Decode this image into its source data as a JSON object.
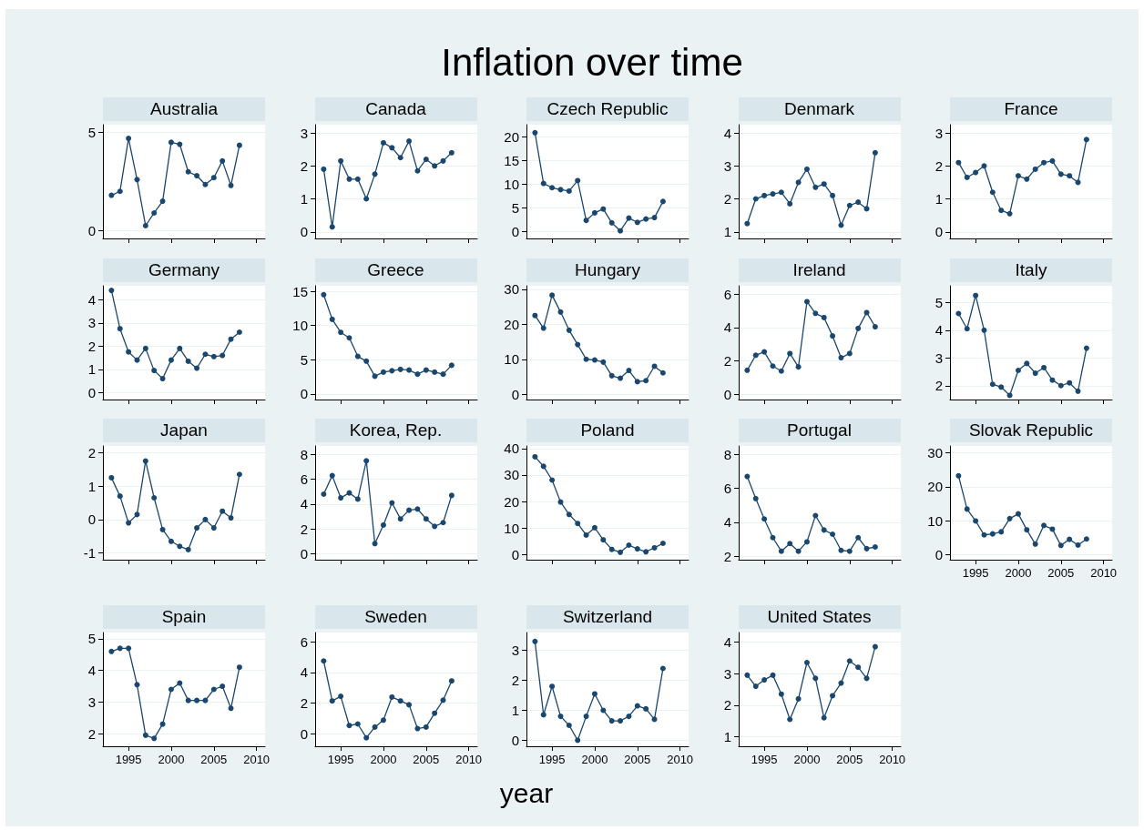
{
  "chart_data": [
    {
      "type": "line",
      "title": "Australia",
      "x": [
        1993,
        1994,
        1995,
        1996,
        1997,
        1998,
        1999,
        2000,
        2001,
        2002,
        2003,
        2004,
        2005,
        2006,
        2007,
        2008
      ],
      "values": [
        1.8,
        2.0,
        4.7,
        2.6,
        0.25,
        0.9,
        1.5,
        4.5,
        4.4,
        3.0,
        2.8,
        2.35,
        2.7,
        3.55,
        2.3,
        4.35
      ],
      "color": "#1a476f",
      "xlim": [
        1992,
        2011
      ],
      "xticks": [
        1995,
        2000,
        2005,
        2010
      ],
      "ylim": [
        -0.4,
        5.4
      ],
      "yticks": [
        0,
        5
      ],
      "grid": "y",
      "marker": "circle",
      "tick_labels": "y"
    },
    {
      "type": "line",
      "title": "Canada",
      "x": [
        1993,
        1994,
        1995,
        1996,
        1997,
        1998,
        1999,
        2000,
        2001,
        2002,
        2003,
        2004,
        2005,
        2006,
        2007,
        2008
      ],
      "values": [
        1.9,
        0.15,
        2.15,
        1.6,
        1.6,
        1.0,
        1.75,
        2.7,
        2.55,
        2.25,
        2.75,
        1.85,
        2.2,
        2.0,
        2.15,
        2.4
      ],
      "color": "#1a476f",
      "xlim": [
        1992,
        2011
      ],
      "xticks": [
        1995,
        2000,
        2005,
        2010
      ],
      "ylim": [
        -0.2,
        3.25
      ],
      "yticks": [
        0,
        1,
        2,
        3
      ],
      "grid": "y",
      "marker": "circle",
      "tick_labels": "y"
    },
    {
      "type": "line",
      "title": "Czech Republic",
      "annotations": [
        "Inflation over time"
      ],
      "x": [
        1993,
        1994,
        1995,
        1996,
        1997,
        1998,
        1999,
        2000,
        2001,
        2002,
        2003,
        2004,
        2005,
        2006,
        2007,
        2008
      ],
      "values": [
        20.8,
        10.1,
        9.2,
        8.8,
        8.5,
        10.7,
        2.3,
        3.9,
        4.7,
        1.8,
        0.1,
        2.8,
        1.9,
        2.6,
        2.9,
        6.3
      ],
      "color": "#1a476f",
      "xlim": [
        1992,
        2011
      ],
      "xticks": [
        1995,
        2000,
        2005,
        2010
      ],
      "ylim": [
        -1.5,
        22.5
      ],
      "yticks": [
        0,
        5,
        10,
        15,
        20
      ],
      "grid": "y",
      "marker": "circle",
      "tick_labels": "y"
    },
    {
      "type": "line",
      "title": "Denmark",
      "x": [
        1993,
        1994,
        1995,
        1996,
        1997,
        1998,
        1999,
        2000,
        2001,
        2002,
        2003,
        2004,
        2005,
        2006,
        2007,
        2008
      ],
      "values": [
        1.25,
        2.0,
        2.1,
        2.15,
        2.2,
        1.85,
        2.5,
        2.9,
        2.35,
        2.45,
        2.1,
        1.2,
        1.8,
        1.9,
        1.7,
        3.4
      ],
      "color": "#1a476f",
      "xlim": [
        1992,
        2011
      ],
      "xticks": [
        1995,
        2000,
        2005,
        2010
      ],
      "ylim": [
        0.8,
        4.25
      ],
      "yticks": [
        1,
        2,
        3,
        4
      ],
      "grid": "y",
      "marker": "circle",
      "tick_labels": "y"
    },
    {
      "type": "line",
      "title": "France",
      "x": [
        1993,
        1994,
        1995,
        1996,
        1997,
        1998,
        1999,
        2000,
        2001,
        2002,
        2003,
        2004,
        2005,
        2006,
        2007,
        2008
      ],
      "values": [
        2.1,
        1.65,
        1.8,
        2.0,
        1.2,
        0.65,
        0.55,
        1.7,
        1.6,
        1.9,
        2.1,
        2.15,
        1.75,
        1.7,
        1.5,
        2.8
      ],
      "color": "#1a476f",
      "xlim": [
        1992,
        2011
      ],
      "xticks": [
        1995,
        2000,
        2005,
        2010
      ],
      "ylim": [
        -0.2,
        3.25
      ],
      "yticks": [
        0,
        1,
        2,
        3
      ],
      "grid": "y",
      "marker": "circle",
      "tick_labels": "y"
    },
    {
      "type": "line",
      "title": "Germany",
      "x": [
        1993,
        1994,
        1995,
        1996,
        1997,
        1998,
        1999,
        2000,
        2001,
        2002,
        2003,
        2004,
        2005,
        2006,
        2007,
        2008
      ],
      "values": [
        4.4,
        2.75,
        1.75,
        1.4,
        1.9,
        0.95,
        0.6,
        1.4,
        1.9,
        1.35,
        1.05,
        1.65,
        1.55,
        1.6,
        2.3,
        2.6
      ],
      "color": "#1a476f",
      "xlim": [
        1992,
        2011
      ],
      "xticks": [
        1995,
        2000,
        2005,
        2010
      ],
      "ylim": [
        -0.3,
        4.6
      ],
      "yticks": [
        0,
        1,
        2,
        3,
        4
      ],
      "grid": "y",
      "marker": "circle",
      "tick_labels": "y"
    },
    {
      "type": "line",
      "title": "Greece",
      "x": [
        1993,
        1994,
        1995,
        1996,
        1997,
        1998,
        1999,
        2000,
        2001,
        2002,
        2003,
        2004,
        2005,
        2006,
        2007,
        2008
      ],
      "values": [
        14.5,
        10.9,
        9.0,
        8.2,
        5.5,
        4.8,
        2.6,
        3.2,
        3.4,
        3.6,
        3.5,
        2.9,
        3.5,
        3.2,
        2.9,
        4.2
      ],
      "color": "#1a476f",
      "xlim": [
        1992,
        2011
      ],
      "xticks": [
        1995,
        2000,
        2005,
        2010
      ],
      "ylim": [
        -0.8,
        15.8
      ],
      "yticks": [
        0,
        5,
        10,
        15
      ],
      "grid": "y",
      "marker": "circle",
      "tick_labels": "y"
    },
    {
      "type": "line",
      "title": "Hungary",
      "x": [
        1993,
        1994,
        1995,
        1996,
        1997,
        1998,
        1999,
        2000,
        2001,
        2002,
        2003,
        2004,
        2005,
        2006,
        2007,
        2008
      ],
      "values": [
        22.5,
        18.9,
        28.3,
        23.5,
        18.3,
        14.2,
        10.0,
        9.8,
        9.2,
        5.3,
        4.6,
        6.8,
        3.6,
        3.9,
        8.0,
        6.1
      ],
      "color": "#1a476f",
      "xlim": [
        1992,
        2011
      ],
      "xticks": [
        1995,
        2000,
        2005,
        2010
      ],
      "ylim": [
        -1.5,
        31
      ],
      "yticks": [
        0,
        10,
        20,
        30
      ],
      "grid": "y",
      "marker": "circle",
      "tick_labels": "y"
    },
    {
      "type": "line",
      "title": "Ireland",
      "x": [
        1993,
        1994,
        1995,
        1996,
        1997,
        1998,
        1999,
        2000,
        2001,
        2002,
        2003,
        2004,
        2005,
        2006,
        2007,
        2008
      ],
      "values": [
        1.45,
        2.35,
        2.55,
        1.7,
        1.4,
        2.45,
        1.65,
        5.55,
        4.85,
        4.6,
        3.5,
        2.2,
        2.45,
        3.95,
        4.9,
        4.05
      ],
      "color": "#1a476f",
      "xlim": [
        1992,
        2011
      ],
      "xticks": [
        1995,
        2000,
        2005,
        2010
      ],
      "ylim": [
        -0.3,
        6.5
      ],
      "yticks": [
        0,
        2,
        4,
        6
      ],
      "grid": "y",
      "marker": "circle",
      "tick_labels": "y"
    },
    {
      "type": "line",
      "title": "Italy",
      "x": [
        1993,
        1994,
        1995,
        1996,
        1997,
        1998,
        1999,
        2000,
        2001,
        2002,
        2003,
        2004,
        2005,
        2006,
        2007,
        2008
      ],
      "values": [
        4.6,
        4.05,
        5.25,
        4.0,
        2.05,
        1.95,
        1.65,
        2.55,
        2.8,
        2.45,
        2.65,
        2.2,
        2.0,
        2.1,
        1.8,
        3.35
      ],
      "color": "#1a476f",
      "xlim": [
        1992,
        2011
      ],
      "xticks": [
        1995,
        2000,
        2005,
        2010
      ],
      "ylim": [
        1.5,
        5.6
      ],
      "yticks": [
        2,
        3,
        4,
        5
      ],
      "grid": "y",
      "marker": "circle",
      "tick_labels": "y"
    },
    {
      "type": "line",
      "title": "Japan",
      "x": [
        1993,
        1994,
        1995,
        1996,
        1997,
        1998,
        1999,
        2000,
        2001,
        2002,
        2003,
        2004,
        2005,
        2006,
        2007,
        2008
      ],
      "values": [
        1.25,
        0.7,
        -0.1,
        0.15,
        1.75,
        0.65,
        -0.3,
        -0.65,
        -0.8,
        -0.9,
        -0.25,
        0.0,
        -0.25,
        0.25,
        0.05,
        1.35
      ],
      "color": "#1a476f",
      "xlim": [
        1992,
        2011
      ],
      "xticks": [
        1995,
        2000,
        2005,
        2010
      ],
      "ylim": [
        -1.2,
        2.2
      ],
      "yticks": [
        -1,
        0,
        1,
        2
      ],
      "grid": "y",
      "marker": "circle",
      "tick_labels": "y"
    },
    {
      "type": "line",
      "title": "Korea, Rep.",
      "x": [
        1993,
        1994,
        1995,
        1996,
        1997,
        1998,
        1999,
        2000,
        2001,
        2002,
        2003,
        2004,
        2005,
        2006,
        2007,
        2008
      ],
      "values": [
        4.8,
        6.3,
        4.5,
        4.9,
        4.4,
        7.5,
        0.8,
        2.3,
        4.1,
        2.8,
        3.5,
        3.6,
        2.8,
        2.2,
        2.5,
        4.7
      ],
      "color": "#1a476f",
      "xlim": [
        1992,
        2011
      ],
      "xticks": [
        1995,
        2000,
        2005,
        2010
      ],
      "ylim": [
        -0.5,
        8.7
      ],
      "yticks": [
        0,
        2,
        4,
        6,
        8
      ],
      "grid": "y",
      "marker": "circle",
      "tick_labels": "y"
    },
    {
      "type": "line",
      "title": "Poland",
      "x": [
        1993,
        1994,
        1995,
        1996,
        1997,
        1998,
        1999,
        2000,
        2001,
        2002,
        2003,
        2004,
        2005,
        2006,
        2007,
        2008
      ],
      "values": [
        36.9,
        33.3,
        28.1,
        19.8,
        15.1,
        11.7,
        7.3,
        10.1,
        5.5,
        1.9,
        0.8,
        3.5,
        2.1,
        1.0,
        2.5,
        4.2
      ],
      "color": "#1a476f",
      "xlim": [
        1992,
        2011
      ],
      "xticks": [
        1995,
        2000,
        2005,
        2010
      ],
      "ylim": [
        -2,
        41
      ],
      "yticks": [
        0,
        10,
        20,
        30,
        40
      ],
      "grid": "y",
      "marker": "circle",
      "tick_labels": "y"
    },
    {
      "type": "line",
      "title": "Portugal",
      "x": [
        1993,
        1994,
        1995,
        1996,
        1997,
        1998,
        1999,
        2000,
        2001,
        2002,
        2003,
        2004,
        2005,
        2006,
        2007,
        2008
      ],
      "values": [
        6.7,
        5.4,
        4.2,
        3.1,
        2.3,
        2.75,
        2.3,
        2.85,
        4.4,
        3.55,
        3.3,
        2.35,
        2.3,
        3.1,
        2.45,
        2.55
      ],
      "color": "#1a476f",
      "xlim": [
        1992,
        2011
      ],
      "xticks": [
        1995,
        2000,
        2005,
        2010
      ],
      "ylim": [
        1.8,
        8.5
      ],
      "yticks": [
        2,
        4,
        6,
        8
      ],
      "grid": "y",
      "marker": "circle",
      "tick_labels": "y"
    },
    {
      "type": "line",
      "title": "Slovak Republic",
      "x": [
        1993,
        1994,
        1995,
        1996,
        1997,
        1998,
        1999,
        2000,
        2001,
        2002,
        2003,
        2004,
        2005,
        2006,
        2007,
        2008
      ],
      "values": [
        23.2,
        13.4,
        9.9,
        5.8,
        6.1,
        6.7,
        10.6,
        12.0,
        7.3,
        3.1,
        8.6,
        7.5,
        2.7,
        4.5,
        2.8,
        4.6
      ],
      "color": "#1a476f",
      "xlim": [
        1992,
        2011
      ],
      "xticks": [
        1995,
        2000,
        2005,
        2010
      ],
      "ylim": [
        -1.5,
        32
      ],
      "yticks": [
        0,
        10,
        20,
        30
      ],
      "grid": "y",
      "marker": "circle"
    },
    {
      "type": "line",
      "title": "Spain",
      "x": [
        1993,
        1994,
        1995,
        1996,
        1997,
        1998,
        1999,
        2000,
        2001,
        2002,
        2003,
        2004,
        2005,
        2006,
        2007,
        2008
      ],
      "values": [
        4.6,
        4.7,
        4.7,
        3.55,
        1.95,
        1.85,
        2.3,
        3.4,
        3.6,
        3.05,
        3.05,
        3.05,
        3.4,
        3.5,
        2.8,
        4.1
      ],
      "color": "#1a476f",
      "xlim": [
        1992,
        2011
      ],
      "xticks": [
        1995,
        2000,
        2005,
        2010
      ],
      "ylim": [
        1.6,
        5.2
      ],
      "yticks": [
        2,
        3,
        4,
        5
      ],
      "grid": "y",
      "marker": "circle"
    },
    {
      "type": "line",
      "title": "Sweden",
      "x": [
        1993,
        1994,
        1995,
        1996,
        1997,
        1998,
        1999,
        2000,
        2001,
        2002,
        2003,
        2004,
        2005,
        2006,
        2007,
        2008
      ],
      "values": [
        4.75,
        2.15,
        2.45,
        0.55,
        0.65,
        -0.25,
        0.45,
        0.9,
        2.4,
        2.15,
        1.9,
        0.35,
        0.45,
        1.35,
        2.2,
        3.45
      ],
      "color": "#1a476f",
      "xlim": [
        1992,
        2011
      ],
      "xticks": [
        1995,
        2000,
        2005,
        2010
      ],
      "ylim": [
        -0.8,
        6.6
      ],
      "yticks": [
        0,
        2,
        4,
        6
      ],
      "grid": "y",
      "marker": "circle"
    },
    {
      "type": "line",
      "title": "Switzerland",
      "xlabel": "year",
      "x": [
        1993,
        1994,
        1995,
        1996,
        1997,
        1998,
        1999,
        2000,
        2001,
        2002,
        2003,
        2004,
        2005,
        2006,
        2007,
        2008
      ],
      "values": [
        3.3,
        0.85,
        1.8,
        0.8,
        0.5,
        0.0,
        0.8,
        1.55,
        1.0,
        0.65,
        0.65,
        0.8,
        1.15,
        1.05,
        0.7,
        2.4
      ],
      "color": "#1a476f",
      "xlim": [
        1992,
        2011
      ],
      "xticks": [
        1995,
        2000,
        2005,
        2010
      ],
      "ylim": [
        -0.2,
        3.6
      ],
      "yticks": [
        0,
        1,
        2,
        3
      ],
      "grid": "y",
      "marker": "circle"
    },
    {
      "type": "line",
      "title": "United States",
      "x": [
        1993,
        1994,
        1995,
        1996,
        1997,
        1998,
        1999,
        2000,
        2001,
        2002,
        2003,
        2004,
        2005,
        2006,
        2007,
        2008
      ],
      "values": [
        2.95,
        2.6,
        2.8,
        2.95,
        2.35,
        1.55,
        2.2,
        3.35,
        2.85,
        1.6,
        2.3,
        2.7,
        3.4,
        3.2,
        2.85,
        3.85
      ],
      "color": "#1a476f",
      "xlim": [
        1992,
        2011
      ],
      "xticks": [
        1995,
        2000,
        2005,
        2010
      ],
      "ylim": [
        0.7,
        4.3
      ],
      "yticks": [
        1,
        2,
        3,
        4
      ],
      "grid": "y",
      "marker": "circle"
    }
  ]
}
